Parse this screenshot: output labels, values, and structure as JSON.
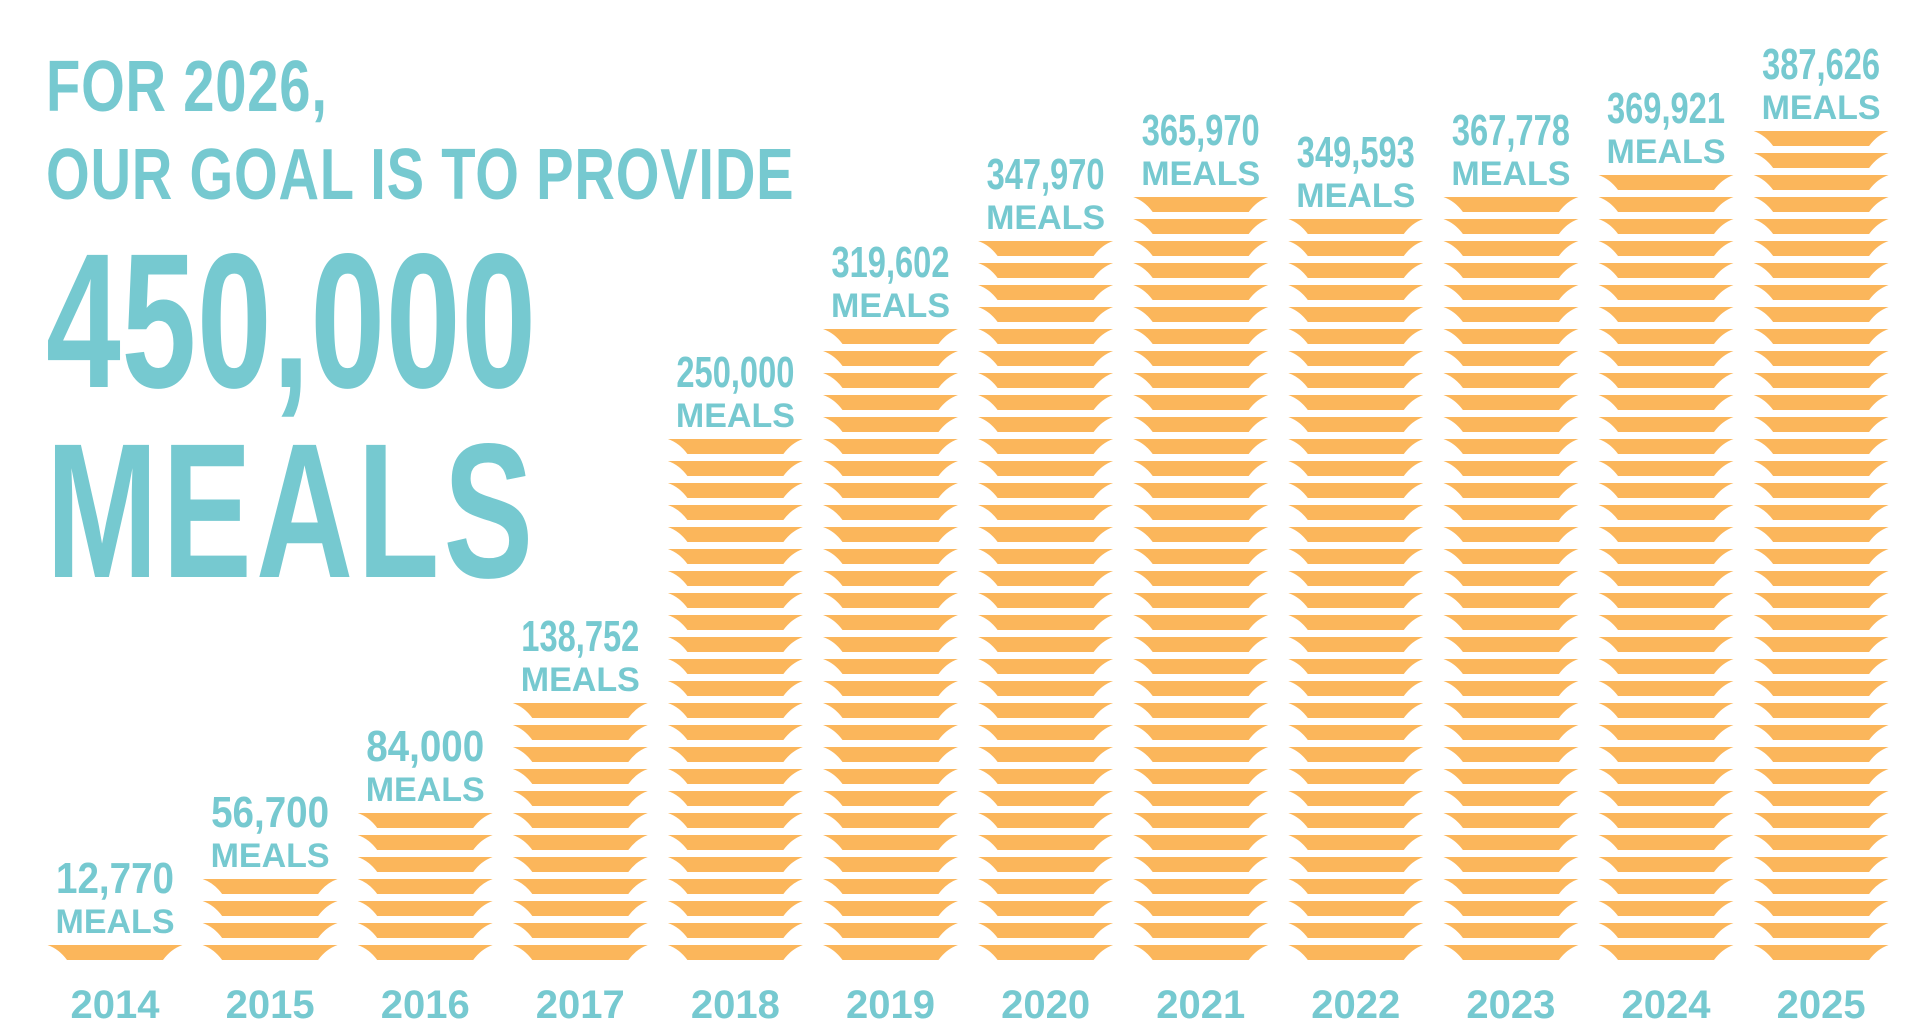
{
  "headline": {
    "line1": "FOR 2026,",
    "line2": "OUR GOAL IS TO PROVIDE",
    "goal_value": "450,000",
    "goal_unit": "MEALS"
  },
  "colors": {
    "accent": "#76C9D0",
    "plate": "#FBB65B",
    "background": "#FFFFFF"
  },
  "chart_data": {
    "type": "bar",
    "title": "FOR 2026, OUR GOAL IS TO PROVIDE 450,000 MEALS",
    "xlabel": "",
    "ylabel": "",
    "unit_label": "MEALS",
    "categories": [
      "2014",
      "2015",
      "2016",
      "2017",
      "2018",
      "2019",
      "2020",
      "2021",
      "2022",
      "2023",
      "2024",
      "2025"
    ],
    "values": [
      12770,
      56700,
      84000,
      138752,
      250000,
      319602,
      347970,
      365970,
      349593,
      367778,
      369921,
      387626
    ],
    "value_labels": [
      "12,770",
      "56,700",
      "84,000",
      "138,752",
      "250,000",
      "319,602",
      "347,970",
      "365,970",
      "349,593",
      "367,778",
      "369,921",
      "387,626"
    ],
    "plate_counts": [
      1,
      4,
      7,
      12,
      24,
      29,
      33,
      35,
      34,
      35,
      36,
      38
    ]
  }
}
